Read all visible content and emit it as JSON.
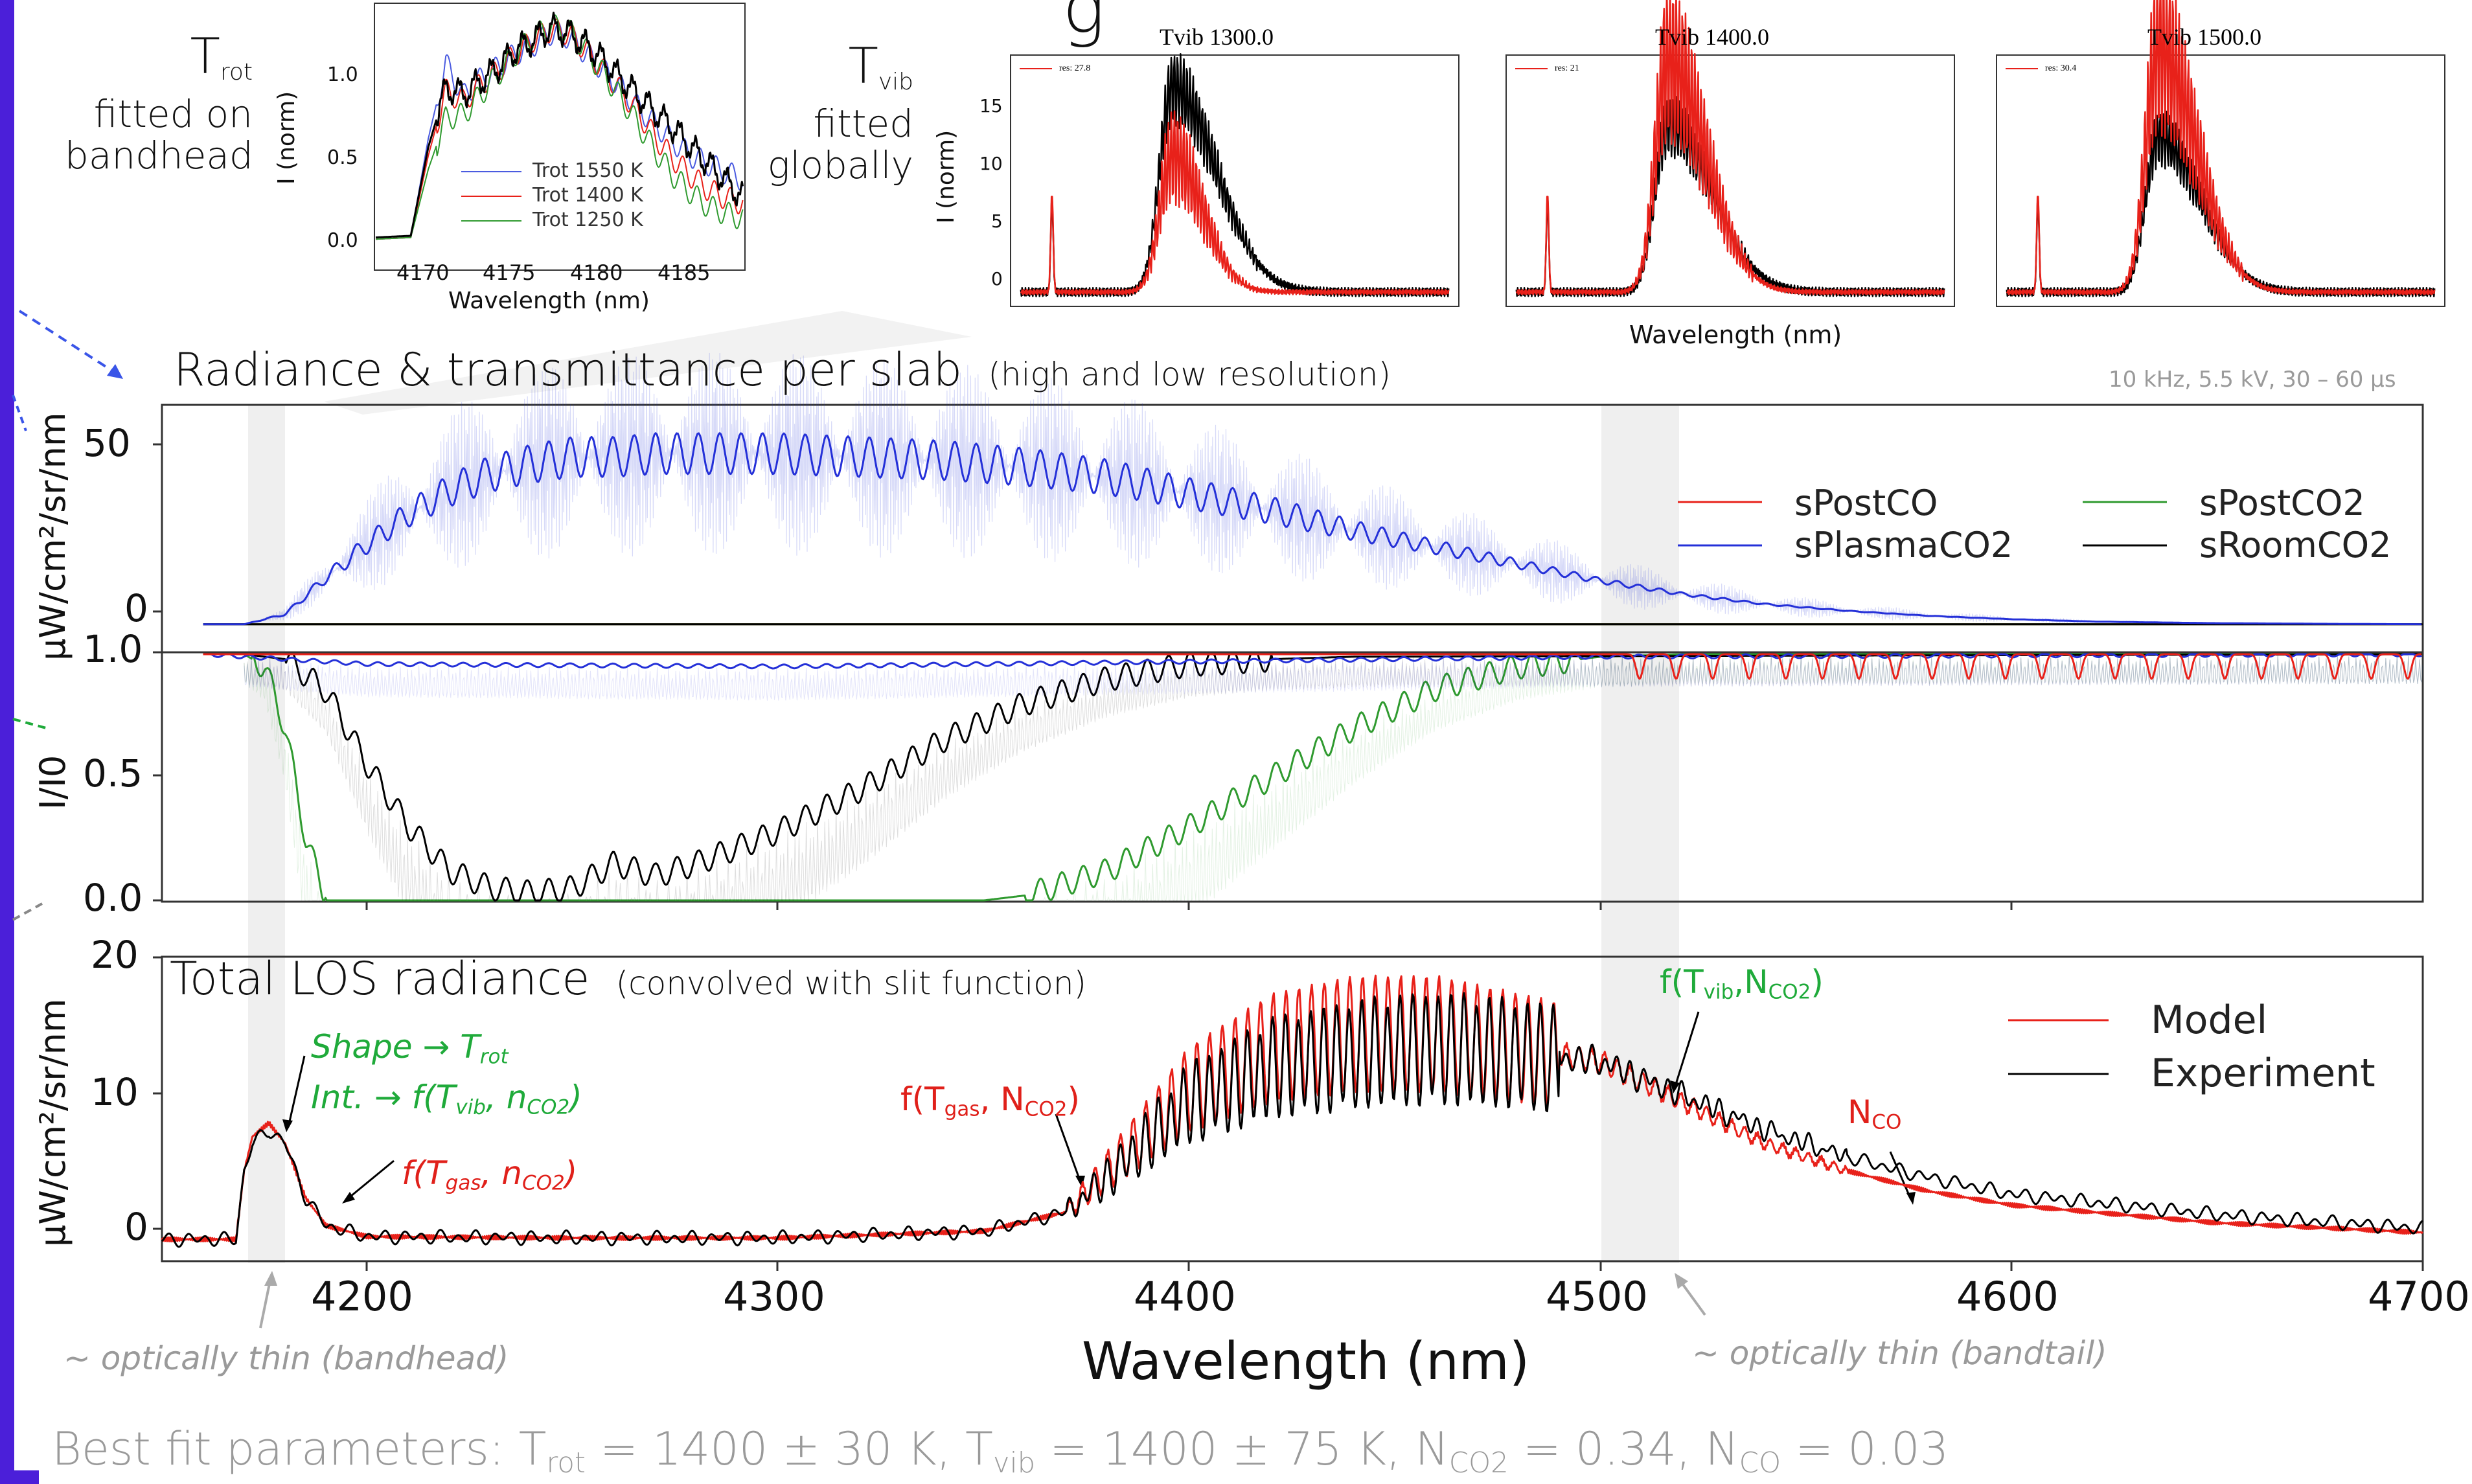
{
  "colors": {
    "frame": "#4b1fd9",
    "red": "#e8211a",
    "blue": "#2430d8",
    "green": "#2f9a2f",
    "black": "#000000",
    "note_green": "#1faa3a",
    "note_red": "#e0201a",
    "grey_text": "#9a9a9a"
  },
  "header": {
    "trot_label": {
      "main": "T",
      "sub": "rot",
      "line2": "fitted on",
      "line3": "bandhead"
    },
    "tvib_label": {
      "main": "T",
      "sub": "vib",
      "line2": "fitted",
      "line3": "globally"
    },
    "title_partial": "g"
  },
  "inset_trot": {
    "ylabel": "I (norm)",
    "xlabel": "Wavelength (nm)",
    "yticks": [
      "0.0",
      "0.5",
      "1.0"
    ],
    "xticks": [
      "4170",
      "4175",
      "4180",
      "4185"
    ],
    "legend": [
      "Trot 1550 K",
      "Trot 1400 K",
      "Trot 1250 K"
    ]
  },
  "inset_tvib": {
    "ylabel": "I (norm)",
    "xlabel": "Wavelength (nm)",
    "yticks": [
      "0",
      "5",
      "10",
      "15"
    ],
    "panels": [
      {
        "title": "Tvib 1300.0",
        "legend": "res: 27.8"
      },
      {
        "title": "Tvib 1400.0",
        "legend": "res: 21"
      },
      {
        "title": "Tvib 1500.0",
        "legend": "res: 30.4"
      }
    ]
  },
  "panel_radiance": {
    "title": "Radiance & transmittance per slab",
    "subtitle": "(high and low resolution)",
    "condition": "10 kHz, 5.5 kV, 30 – 60 µs",
    "ylabel": "µW/cm²/sr/nm",
    "yticks": [
      "0",
      "50"
    ],
    "legend": [
      "sPostCO",
      "sPlasmaCO2",
      "sPostCO2",
      "sRoomCO2"
    ]
  },
  "panel_transmittance": {
    "ylabel": "I/I0",
    "yticks": [
      "0.0",
      "0.5",
      "1.0"
    ]
  },
  "panel_total": {
    "title": "Total LOS radiance",
    "subtitle": "(convolved with slit function)",
    "ylabel": "µW/cm²/sr/nm",
    "yticks": [
      "0",
      "10",
      "20"
    ],
    "legend": [
      "Model",
      "Experiment"
    ],
    "xlabel": "Wavelength (nm)",
    "xticks": [
      "4200",
      "4300",
      "4400",
      "4500",
      "4600",
      "4700"
    ],
    "ann_shape": {
      "a": "Shape → T",
      "b": "rot"
    },
    "ann_int": {
      "a": "Int. → f(T",
      "b": "vib",
      "c": ", n",
      "d": "CO2",
      "e": ")"
    },
    "ann_fgas_small": {
      "a": "f(T",
      "b": "gas",
      "c": ", n",
      "d": "CO2",
      "e": ")"
    },
    "ann_fgas_big": {
      "a": "f(T",
      "b": "gas",
      "c": ", N",
      "d": "CO2",
      "e": ")"
    },
    "ann_fvib": {
      "a": "f(T",
      "b": "vib",
      "c": ",N",
      "d": "CO2",
      "e": ")"
    },
    "ann_nco": {
      "a": "N",
      "b": "CO"
    },
    "thin_bandhead": "~ optically thin (bandhead)",
    "thin_bandtail": "~ optically thin (bandtail)"
  },
  "footer": {
    "p1": "Best fit parameters: T",
    "s1": "rot",
    "p2": " = 1400 ± 30 K, T",
    "s2": "vib",
    "p3": " = 1400 ± 75 K, N",
    "s3": "CO2",
    "p4": " = 0.34, N",
    "s4": "CO",
    "p5": " = 0.03"
  },
  "chart_data": [
    {
      "type": "line",
      "title": "",
      "xlabel": "Wavelength (nm)",
      "ylabel": "I (norm)",
      "xlim": [
        4167,
        4188
      ],
      "ylim": [
        -0.05,
        1.3
      ],
      "series": [
        {
          "name": "Trot 1550 K",
          "color": "#4b5be0",
          "x": [
            4167,
            4169,
            4170,
            4171,
            4172,
            4173,
            4174,
            4175,
            4176,
            4177,
            4178,
            4179,
            4180,
            4181,
            4182,
            4183,
            4184,
            4185,
            4186,
            4187,
            4188
          ],
          "y": [
            0.01,
            0.02,
            0.6,
            1.04,
            0.85,
            0.95,
            1.02,
            1.1,
            1.15,
            1.22,
            1.2,
            1.1,
            1.0,
            0.9,
            0.78,
            0.68,
            0.58,
            0.5,
            0.45,
            0.4,
            0.36
          ]
        },
        {
          "name": "Trot 1400 K",
          "color": "#e8211a",
          "x": [
            4167,
            4169,
            4170,
            4171,
            4172,
            4173,
            4174,
            4175,
            4176,
            4177,
            4178,
            4179,
            4180,
            4181,
            4182,
            4183,
            4184,
            4185,
            4186,
            4187,
            4188
          ],
          "y": [
            0.01,
            0.02,
            0.5,
            0.88,
            0.82,
            0.92,
            1.0,
            1.1,
            1.18,
            1.24,
            1.22,
            1.12,
            1.0,
            0.88,
            0.75,
            0.6,
            0.48,
            0.38,
            0.3,
            0.25,
            0.22
          ]
        },
        {
          "name": "Trot 1250 K",
          "color": "#2f9a2f",
          "x": [
            4167,
            4169,
            4170,
            4171,
            4172,
            4173,
            4174,
            4175,
            4176,
            4177,
            4178,
            4179,
            4180,
            4181,
            4182,
            4183,
            4184,
            4185,
            4186,
            4187,
            4188
          ],
          "y": [
            0.01,
            0.02,
            0.42,
            0.72,
            0.74,
            0.86,
            0.98,
            1.1,
            1.2,
            1.26,
            1.24,
            1.12,
            0.98,
            0.84,
            0.68,
            0.52,
            0.38,
            0.28,
            0.2,
            0.16,
            0.13
          ]
        },
        {
          "name": "Experiment",
          "color": "#000000",
          "x": [
            4167,
            4169,
            4170,
            4171,
            4172,
            4173,
            4174,
            4175,
            4176,
            4177,
            4178,
            4179,
            4180,
            4181,
            4182,
            4183,
            4184,
            4185,
            4186,
            4187,
            4188
          ],
          "y": [
            0.02,
            0.03,
            0.55,
            0.9,
            0.86,
            0.94,
            1.02,
            1.12,
            1.18,
            1.25,
            1.22,
            1.15,
            1.06,
            0.95,
            0.85,
            0.75,
            0.66,
            0.55,
            0.45,
            0.35,
            0.25
          ]
        }
      ]
    },
    {
      "type": "line",
      "title": "Tvib 1300.0",
      "xlabel": "Wavelength (nm)",
      "ylabel": "I (norm)",
      "ylim": [
        -1,
        19
      ],
      "series": [
        {
          "name": "Experiment",
          "color": "#000000",
          "shape": {
            "spike": 7.5,
            "peak": 16.5,
            "width": 0.23
          }
        },
        {
          "name": "res: 27.8",
          "color": "#e8211a",
          "shape": {
            "spike": 8,
            "peak": 11,
            "width": 0.16
          }
        }
      ]
    },
    {
      "type": "line",
      "title": "Tvib 1400.0",
      "xlabel": "Wavelength (nm)",
      "ylabel": "I (norm)",
      "ylim": [
        -1,
        19
      ],
      "series": [
        {
          "name": "Experiment",
          "color": "#000000",
          "shape": {
            "spike": 7.5,
            "peak": 13.5,
            "width": 0.23
          }
        },
        {
          "name": "res: 21",
          "color": "#e8211a",
          "shape": {
            "spike": 8,
            "peak": 18.5,
            "width": 0.2
          }
        }
      ]
    },
    {
      "type": "line",
      "title": "Tvib 1500.0",
      "xlabel": "Wavelength (nm)",
      "ylabel": "I (norm)",
      "ylim": [
        -1,
        19
      ],
      "series": [
        {
          "name": "Experiment",
          "color": "#000000",
          "shape": {
            "spike": 7.5,
            "peak": 12.5,
            "width": 0.22
          }
        },
        {
          "name": "res: 30.4",
          "color": "#e8211a",
          "shape": {
            "spike": 8,
            "peak": 19.5,
            "width": 0.2
          }
        }
      ]
    },
    {
      "type": "line",
      "title": "Radiance & transmittance per slab",
      "ylabel": "µW/cm²/sr/nm",
      "xlim": [
        4150,
        4700
      ],
      "ylim": [
        -8,
        65
      ],
      "series": [
        {
          "name": "sPlasmaCO2",
          "color": "#2430d8",
          "x": [
            4160,
            4170,
            4180,
            4190,
            4200,
            4210,
            4220,
            4230,
            4240,
            4250,
            4260,
            4270,
            4280,
            4290,
            4300,
            4320,
            4340,
            4360,
            4380,
            4400,
            4420,
            4440,
            4460,
            4480,
            4500,
            4520,
            4540,
            4560,
            4580,
            4600,
            4620,
            4650,
            4680,
            4700
          ],
          "y": [
            0,
            0,
            3,
            14,
            24,
            33,
            40,
            45,
            48,
            50,
            50,
            51,
            51,
            51,
            51,
            50,
            49,
            47,
            44,
            39,
            34,
            28,
            23,
            18,
            13,
            9,
            6,
            4,
            2.5,
            1.5,
            0.8,
            0.3,
            0.1,
            0
          ]
        },
        {
          "name": "sPostCO",
          "color": "#e8211a",
          "x": [
            4160,
            4700
          ],
          "y": [
            0,
            0
          ]
        },
        {
          "name": "sPostCO2",
          "color": "#2f9a2f",
          "x": [
            4160,
            4700
          ],
          "y": [
            0,
            0
          ]
        },
        {
          "name": "sRoomCO2",
          "color": "#000000",
          "x": [
            4160,
            4700
          ],
          "y": [
            0,
            0
          ]
        }
      ]
    },
    {
      "type": "line",
      "ylabel": "I/I0",
      "xlim": [
        4150,
        4700
      ],
      "ylim": [
        0,
        1.0
      ],
      "series": [
        {
          "name": "sPostCO2",
          "color": "#2f9a2f",
          "x": [
            4170,
            4175,
            4180,
            4185,
            4190,
            4350,
            4360,
            4380,
            4400,
            4420,
            4440,
            4460,
            4480,
            4500,
            4520,
            4700
          ],
          "y": [
            1,
            0.95,
            0.7,
            0.25,
            0,
            0,
            0.02,
            0.12,
            0.3,
            0.5,
            0.7,
            0.86,
            0.95,
            0.99,
            1,
            1
          ]
        },
        {
          "name": "sRoomCO2",
          "color": "#000000",
          "x": [
            4170,
            4180,
            4190,
            4200,
            4210,
            4220,
            4230,
            4240,
            4250,
            4260,
            4270,
            4280,
            4300,
            4320,
            4340,
            4360,
            4380,
            4400,
            4420,
            4440,
            4700
          ],
          "y": [
            1,
            0.98,
            0.85,
            0.55,
            0.3,
            0.12,
            0.05,
            0.03,
            0.05,
            0.15,
            0.1,
            0.15,
            0.28,
            0.45,
            0.65,
            0.8,
            0.9,
            0.96,
            0.98,
            0.99,
            1
          ]
        },
        {
          "name": "sPlasmaCO2",
          "color": "#2430d8",
          "x": [
            4160,
            4200,
            4300,
            4400,
            4500,
            4700
          ],
          "y": [
            1,
            0.96,
            0.95,
            0.97,
            0.99,
            1
          ]
        },
        {
          "name": "sPostCO",
          "color": "#e8211a",
          "x": [
            4160,
            4500,
            4700
          ],
          "y": [
            1,
            1,
            1
          ]
        }
      ]
    },
    {
      "type": "line",
      "title": "Total LOS radiance",
      "xlabel": "Wavelength (nm)",
      "ylabel": "µW/cm²/sr/nm",
      "xlim": [
        4150,
        4700
      ],
      "ylim": [
        -1.5,
        20.5
      ],
      "series": [
        {
          "name": "Model",
          "color": "#e8211a",
          "x": [
            4150,
            4168,
            4170,
            4172,
            4176,
            4180,
            4185,
            4190,
            4200,
            4250,
            4300,
            4350,
            4370,
            4380,
            4400,
            4420,
            4440,
            4460,
            4480,
            4500,
            4520,
            4540,
            4560,
            4580,
            4600,
            4650,
            4700
          ],
          "y": [
            0,
            0,
            5,
            7.5,
            8.5,
            7,
            3,
            1,
            0.2,
            0.1,
            0.1,
            0.6,
            2,
            5,
            11,
            14,
            15,
            15,
            14,
            13,
            10,
            7,
            5,
            3.5,
            2.5,
            1.2,
            0.5
          ]
        },
        {
          "name": "Experiment",
          "color": "#000000",
          "x": [
            4150,
            4168,
            4170,
            4172,
            4176,
            4180,
            4185,
            4190,
            4200,
            4250,
            4300,
            4350,
            4370,
            4380,
            4400,
            4420,
            4440,
            4460,
            4480,
            4500,
            4520,
            4540,
            4560,
            4580,
            4600,
            4650,
            4700
          ],
          "y": [
            0,
            0,
            5,
            7,
            8,
            7,
            3,
            1,
            0.2,
            0.1,
            0.1,
            0.6,
            2,
            4.5,
            10,
            12.5,
            13.5,
            14,
            13.5,
            13,
            10.5,
            8,
            6,
            4.5,
            3.3,
            1.8,
            0.8
          ]
        }
      ]
    }
  ]
}
